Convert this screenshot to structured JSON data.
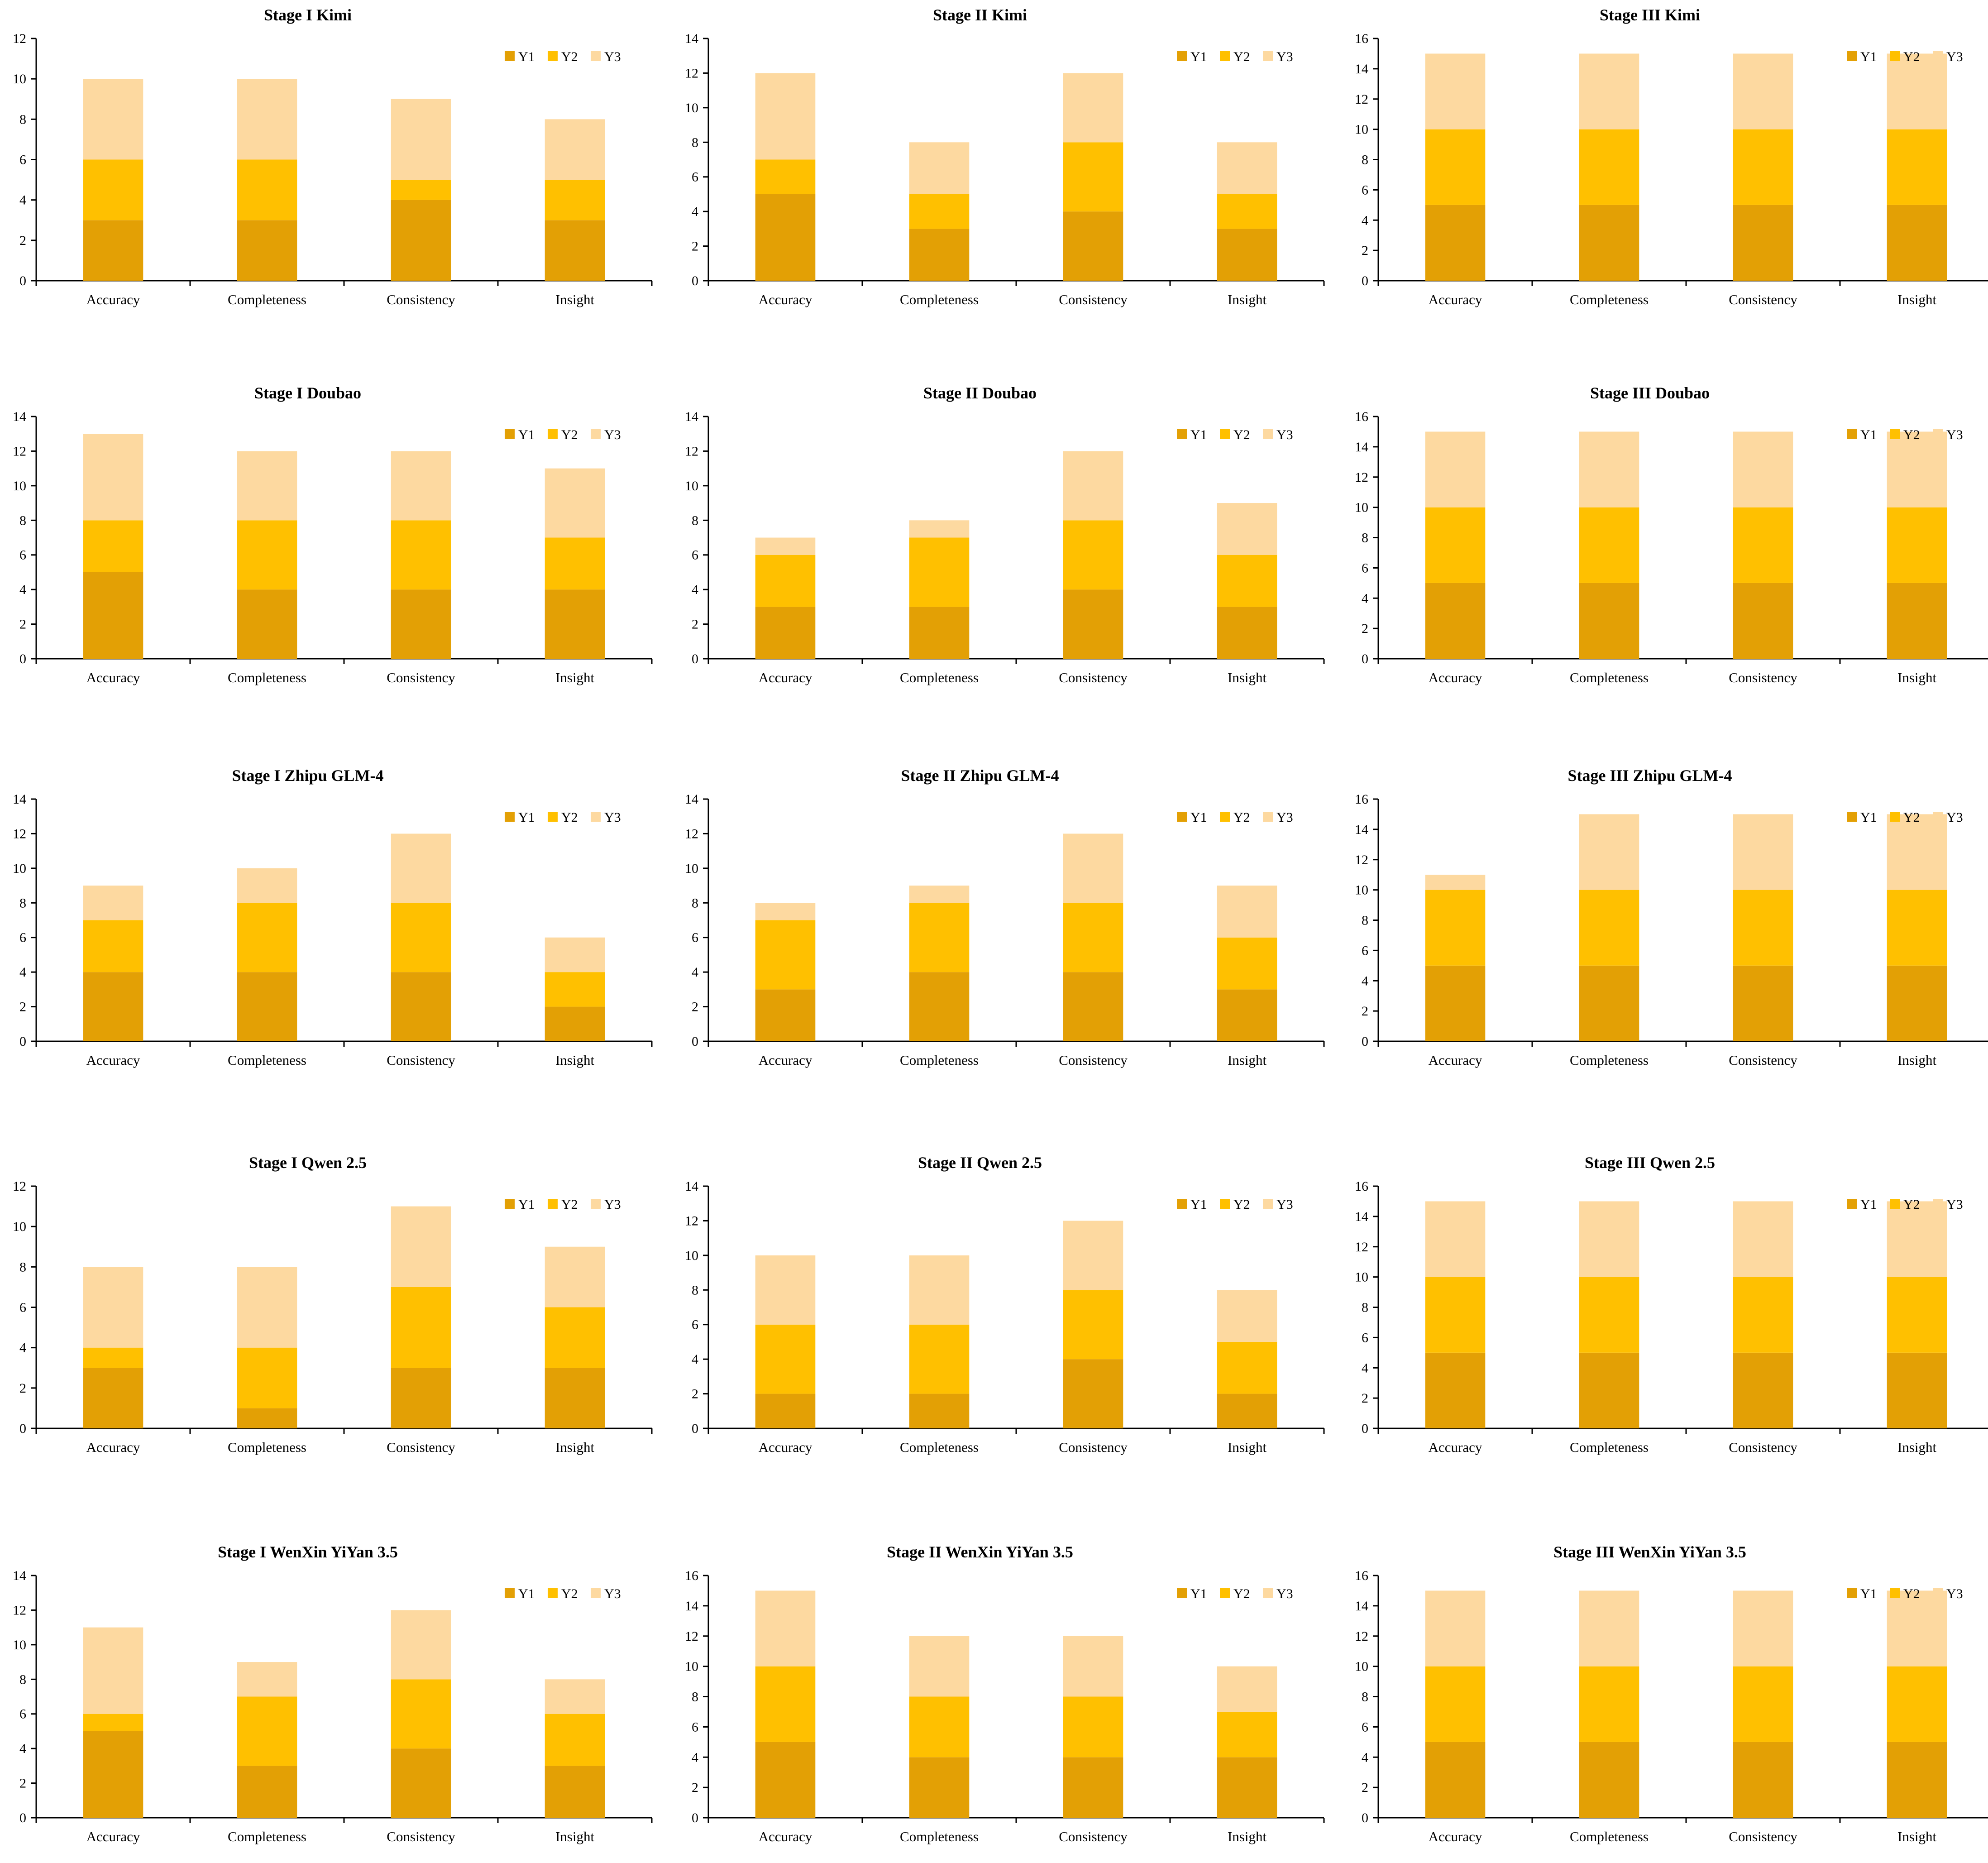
{
  "figure": {
    "legend": {
      "labels": [
        "Y1",
        "Y2",
        "Y3"
      ],
      "placement": "top-right"
    }
  },
  "colors": {
    "Y1": "#E3A005",
    "Y2": "#FFC000",
    "Y3": "#FDD9A0",
    "axis": "#000000"
  },
  "chart_data": [
    {
      "type": "bar",
      "stacked": true,
      "title": "Stage I Kimi",
      "categories": [
        "Accuracy",
        "Completeness",
        "Consistency",
        "Insight"
      ],
      "series": [
        {
          "name": "Y1",
          "values": [
            3,
            3,
            4,
            3
          ]
        },
        {
          "name": "Y2",
          "values": [
            3,
            3,
            1,
            2
          ]
        },
        {
          "name": "Y3",
          "values": [
            4,
            4,
            4,
            3
          ]
        }
      ],
      "ylim": [
        0,
        12
      ],
      "yticks": [
        0,
        2,
        4,
        6,
        8,
        10,
        12
      ]
    },
    {
      "type": "bar",
      "stacked": true,
      "title": "Stage II Kimi",
      "categories": [
        "Accuracy",
        "Completeness",
        "Consistency",
        "Insight"
      ],
      "series": [
        {
          "name": "Y1",
          "values": [
            5,
            3,
            4,
            3
          ]
        },
        {
          "name": "Y2",
          "values": [
            2,
            2,
            4,
            2
          ]
        },
        {
          "name": "Y3",
          "values": [
            5,
            3,
            4,
            3
          ]
        }
      ],
      "ylim": [
        0,
        14
      ],
      "yticks": [
        0,
        2,
        4,
        6,
        8,
        10,
        12,
        14
      ]
    },
    {
      "type": "bar",
      "stacked": true,
      "title": "Stage III Kimi",
      "categories": [
        "Accuracy",
        "Completeness",
        "Consistency",
        "Insight"
      ],
      "series": [
        {
          "name": "Y1",
          "values": [
            5,
            5,
            5,
            5
          ]
        },
        {
          "name": "Y2",
          "values": [
            5,
            5,
            5,
            5
          ]
        },
        {
          "name": "Y3",
          "values": [
            5,
            5,
            5,
            5
          ]
        }
      ],
      "ylim": [
        0,
        16
      ],
      "yticks": [
        0,
        2,
        4,
        6,
        8,
        10,
        12,
        14,
        16
      ]
    },
    {
      "type": "bar",
      "stacked": true,
      "title": "Stage I Doubao",
      "categories": [
        "Accuracy",
        "Completeness",
        "Consistency",
        "Insight"
      ],
      "series": [
        {
          "name": "Y1",
          "values": [
            5,
            4,
            4,
            4
          ]
        },
        {
          "name": "Y2",
          "values": [
            3,
            4,
            4,
            3
          ]
        },
        {
          "name": "Y3",
          "values": [
            5,
            4,
            4,
            4
          ]
        }
      ],
      "ylim": [
        0,
        14
      ],
      "yticks": [
        0,
        2,
        4,
        6,
        8,
        10,
        12,
        14
      ]
    },
    {
      "type": "bar",
      "stacked": true,
      "title": "Stage II Doubao",
      "categories": [
        "Accuracy",
        "Completeness",
        "Consistency",
        "Insight"
      ],
      "series": [
        {
          "name": "Y1",
          "values": [
            3,
            3,
            4,
            3
          ]
        },
        {
          "name": "Y2",
          "values": [
            3,
            4,
            4,
            3
          ]
        },
        {
          "name": "Y3",
          "values": [
            1,
            1,
            4,
            3
          ]
        }
      ],
      "ylim": [
        0,
        14
      ],
      "yticks": [
        0,
        2,
        4,
        6,
        8,
        10,
        12,
        14
      ]
    },
    {
      "type": "bar",
      "stacked": true,
      "title": "Stage III Doubao",
      "categories": [
        "Accuracy",
        "Completeness",
        "Consistency",
        "Insight"
      ],
      "series": [
        {
          "name": "Y1",
          "values": [
            5,
            5,
            5,
            5
          ]
        },
        {
          "name": "Y2",
          "values": [
            5,
            5,
            5,
            5
          ]
        },
        {
          "name": "Y3",
          "values": [
            5,
            5,
            5,
            5
          ]
        }
      ],
      "ylim": [
        0,
        16
      ],
      "yticks": [
        0,
        2,
        4,
        6,
        8,
        10,
        12,
        14,
        16
      ]
    },
    {
      "type": "bar",
      "stacked": true,
      "title": "Stage I Zhipu GLM-4",
      "categories": [
        "Accuracy",
        "Completeness",
        "Consistency",
        "Insight"
      ],
      "series": [
        {
          "name": "Y1",
          "values": [
            4,
            4,
            4,
            2
          ]
        },
        {
          "name": "Y2",
          "values": [
            3,
            4,
            4,
            2
          ]
        },
        {
          "name": "Y3",
          "values": [
            2,
            2,
            4,
            2
          ]
        }
      ],
      "ylim": [
        0,
        14
      ],
      "yticks": [
        0,
        2,
        4,
        6,
        8,
        10,
        12,
        14
      ]
    },
    {
      "type": "bar",
      "stacked": true,
      "title": "Stage II Zhipu GLM-4",
      "categories": [
        "Accuracy",
        "Completeness",
        "Consistency",
        "Insight"
      ],
      "series": [
        {
          "name": "Y1",
          "values": [
            3,
            4,
            4,
            3
          ]
        },
        {
          "name": "Y2",
          "values": [
            4,
            4,
            4,
            3
          ]
        },
        {
          "name": "Y3",
          "values": [
            1,
            1,
            4,
            3
          ]
        }
      ],
      "ylim": [
        0,
        14
      ],
      "yticks": [
        0,
        2,
        4,
        6,
        8,
        10,
        12,
        14
      ]
    },
    {
      "type": "bar",
      "stacked": true,
      "title": "Stage III Zhipu GLM-4",
      "categories": [
        "Accuracy",
        "Completeness",
        "Consistency",
        "Insight"
      ],
      "series": [
        {
          "name": "Y1",
          "values": [
            5,
            5,
            5,
            5
          ]
        },
        {
          "name": "Y2",
          "values": [
            5,
            5,
            5,
            5
          ]
        },
        {
          "name": "Y3",
          "values": [
            1,
            5,
            5,
            5
          ]
        }
      ],
      "ylim": [
        0,
        16
      ],
      "yticks": [
        0,
        2,
        4,
        6,
        8,
        10,
        12,
        14,
        16
      ]
    },
    {
      "type": "bar",
      "stacked": true,
      "title": "Stage I Qwen 2.5",
      "categories": [
        "Accuracy",
        "Completeness",
        "Consistency",
        "Insight"
      ],
      "series": [
        {
          "name": "Y1",
          "values": [
            3,
            1,
            3,
            3
          ]
        },
        {
          "name": "Y2",
          "values": [
            1,
            3,
            4,
            3
          ]
        },
        {
          "name": "Y3",
          "values": [
            4,
            4,
            4,
            3
          ]
        }
      ],
      "ylim": [
        0,
        12
      ],
      "yticks": [
        0,
        2,
        4,
        6,
        8,
        10,
        12
      ]
    },
    {
      "type": "bar",
      "stacked": true,
      "title": "Stage II Qwen 2.5",
      "categories": [
        "Accuracy",
        "Completeness",
        "Consistency",
        "Insight"
      ],
      "series": [
        {
          "name": "Y1",
          "values": [
            2,
            2,
            4,
            2
          ]
        },
        {
          "name": "Y2",
          "values": [
            4,
            4,
            4,
            3
          ]
        },
        {
          "name": "Y3",
          "values": [
            4,
            4,
            4,
            3
          ]
        }
      ],
      "ylim": [
        0,
        14
      ],
      "yticks": [
        0,
        2,
        4,
        6,
        8,
        10,
        12,
        14
      ]
    },
    {
      "type": "bar",
      "stacked": true,
      "title": "Stage III Qwen 2.5",
      "categories": [
        "Accuracy",
        "Completeness",
        "Consistency",
        "Insight"
      ],
      "series": [
        {
          "name": "Y1",
          "values": [
            5,
            5,
            5,
            5
          ]
        },
        {
          "name": "Y2",
          "values": [
            5,
            5,
            5,
            5
          ]
        },
        {
          "name": "Y3",
          "values": [
            5,
            5,
            5,
            5
          ]
        }
      ],
      "ylim": [
        0,
        16
      ],
      "yticks": [
        0,
        2,
        4,
        6,
        8,
        10,
        12,
        14,
        16
      ]
    },
    {
      "type": "bar",
      "stacked": true,
      "title": "Stage I WenXin YiYan 3.5",
      "categories": [
        "Accuracy",
        "Completeness",
        "Consistency",
        "Insight"
      ],
      "series": [
        {
          "name": "Y1",
          "values": [
            5,
            3,
            4,
            3
          ]
        },
        {
          "name": "Y2",
          "values": [
            1,
            4,
            4,
            3
          ]
        },
        {
          "name": "Y3",
          "values": [
            5,
            2,
            4,
            2
          ]
        }
      ],
      "ylim": [
        0,
        14
      ],
      "yticks": [
        0,
        2,
        4,
        6,
        8,
        10,
        12,
        14
      ]
    },
    {
      "type": "bar",
      "stacked": true,
      "title": "Stage II WenXin YiYan 3.5",
      "categories": [
        "Accuracy",
        "Completeness",
        "Consistency",
        "Insight"
      ],
      "series": [
        {
          "name": "Y1",
          "values": [
            5,
            4,
            4,
            4
          ]
        },
        {
          "name": "Y2",
          "values": [
            5,
            4,
            4,
            3
          ]
        },
        {
          "name": "Y3",
          "values": [
            5,
            4,
            4,
            3
          ]
        }
      ],
      "ylim": [
        0,
        16
      ],
      "yticks": [
        0,
        2,
        4,
        6,
        8,
        10,
        12,
        14,
        16
      ]
    },
    {
      "type": "bar",
      "stacked": true,
      "title": "Stage III WenXin YiYan 3.5",
      "categories": [
        "Accuracy",
        "Completeness",
        "Consistency",
        "Insight"
      ],
      "series": [
        {
          "name": "Y1",
          "values": [
            5,
            5,
            5,
            5
          ]
        },
        {
          "name": "Y2",
          "values": [
            5,
            5,
            5,
            5
          ]
        },
        {
          "name": "Y3",
          "values": [
            5,
            5,
            5,
            5
          ]
        }
      ],
      "ylim": [
        0,
        16
      ],
      "yticks": [
        0,
        2,
        4,
        6,
        8,
        10,
        12,
        14,
        16
      ]
    }
  ]
}
